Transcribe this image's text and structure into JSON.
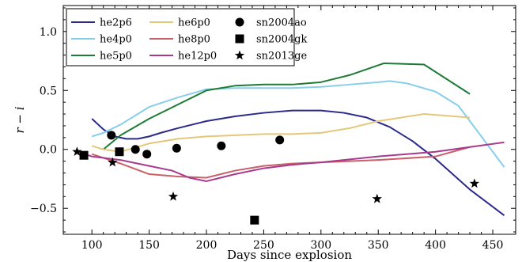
{
  "chart_data": {
    "type": "line",
    "xlabel": "Days since explosion",
    "ylabel": "r − i",
    "xlim": [
      75,
      470
    ],
    "ylim": [
      -0.72,
      1.22
    ],
    "xticks": [
      100,
      150,
      200,
      250,
      300,
      350,
      400,
      450
    ],
    "yticks": [
      -0.5,
      0.0,
      0.5,
      1.0
    ],
    "ytick_labels": [
      "−0.5",
      "0.0",
      "0.5",
      "1.0"
    ],
    "grid": false,
    "legend_placement": "top-left",
    "series": [
      {
        "name": "he2p6",
        "kind": "line",
        "color": "#2b2a8a",
        "x": [
          100,
          110,
          120,
          130,
          140,
          150,
          160,
          175,
          200,
          225,
          250,
          275,
          300,
          320,
          340,
          360,
          380,
          400,
          430,
          460
        ],
        "y": [
          0.26,
          0.17,
          0.11,
          0.09,
          0.09,
          0.11,
          0.14,
          0.18,
          0.24,
          0.28,
          0.31,
          0.33,
          0.33,
          0.31,
          0.27,
          0.19,
          0.07,
          -0.08,
          -0.34,
          -0.56
        ]
      },
      {
        "name": "he4p0",
        "kind": "line",
        "color": "#87ceeb",
        "x": [
          100,
          110,
          125,
          150,
          175,
          200,
          225,
          250,
          275,
          300,
          325,
          350,
          360,
          375,
          400,
          420,
          440,
          460
        ],
        "y": [
          0.11,
          0.14,
          0.21,
          0.36,
          0.44,
          0.51,
          0.52,
          0.52,
          0.52,
          0.53,
          0.55,
          0.57,
          0.58,
          0.56,
          0.49,
          0.37,
          0.11,
          -0.15
        ]
      },
      {
        "name": "he5p0",
        "kind": "line",
        "color": "#1e7b35",
        "x": [
          110,
          125,
          150,
          175,
          200,
          225,
          250,
          275,
          300,
          325,
          355,
          390,
          430
        ],
        "y": [
          0.0,
          0.12,
          0.26,
          0.38,
          0.5,
          0.54,
          0.55,
          0.55,
          0.57,
          0.63,
          0.73,
          0.72,
          0.47
        ]
      },
      {
        "name": "he6p0",
        "kind": "line",
        "color": "#e5c77a",
        "x": [
          100,
          110,
          125,
          150,
          175,
          200,
          225,
          250,
          275,
          300,
          325,
          350,
          390,
          430
        ],
        "y": [
          0.03,
          0.0,
          -0.02,
          0.05,
          0.09,
          0.11,
          0.12,
          0.13,
          0.13,
          0.14,
          0.18,
          0.24,
          0.3,
          0.27
        ]
      },
      {
        "name": "he8p0",
        "kind": "line",
        "color": "#c8606a",
        "x": [
          100,
          125,
          150,
          175,
          200,
          225,
          250,
          275,
          300,
          350,
          400,
          430
        ],
        "y": [
          -0.04,
          -0.12,
          -0.21,
          -0.23,
          -0.24,
          -0.18,
          -0.14,
          -0.12,
          -0.11,
          -0.09,
          -0.06,
          0.02
        ]
      },
      {
        "name": "he12p0",
        "kind": "line",
        "color": "#a83a8e",
        "x": [
          88,
          100,
          125,
          150,
          170,
          185,
          200,
          225,
          250,
          275,
          300,
          350,
          400,
          430,
          460
        ],
        "y": [
          -0.02,
          -0.06,
          -0.09,
          -0.14,
          -0.18,
          -0.24,
          -0.27,
          -0.21,
          -0.16,
          -0.13,
          -0.11,
          -0.06,
          -0.02,
          0.02,
          0.06
        ]
      },
      {
        "name": "sn2004ao",
        "kind": "marker",
        "marker": "circle",
        "color": "#000000",
        "x": [
          117,
          138,
          148,
          174,
          213,
          264
        ],
        "y": [
          0.12,
          0.0,
          -0.04,
          0.01,
          0.03,
          0.08
        ]
      },
      {
        "name": "sn2004gk",
        "kind": "marker",
        "marker": "square",
        "color": "#000000",
        "x": [
          93,
          124,
          242
        ],
        "y": [
          -0.05,
          -0.02,
          -0.6
        ]
      },
      {
        "name": "sn2013ge",
        "kind": "marker",
        "marker": "star",
        "color": "#000000",
        "x": [
          87,
          118,
          171,
          349,
          434
        ],
        "y": [
          -0.02,
          -0.11,
          -0.4,
          -0.42,
          -0.29
        ]
      }
    ]
  }
}
